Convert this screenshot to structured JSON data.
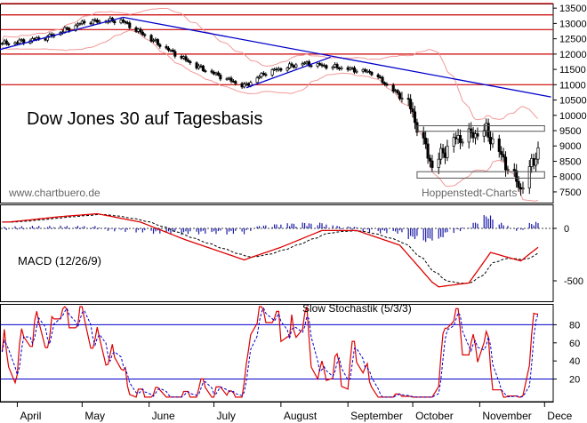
{
  "chart_data": [
    {
      "type": "candlestick",
      "title": "Dow Jones 30 auf Tagesbasis",
      "watermark_left": "www.chartbuero.de",
      "watermark_right": "Hoppenstedt-Charts",
      "y_ticks": [
        7500,
        8000,
        8500,
        9000,
        9500,
        10000,
        10500,
        11000,
        11500,
        12000,
        12500,
        13000,
        13500
      ],
      "ylim": [
        7150,
        13650
      ],
      "ohlc_anchors": [
        {
          "date": "2008-03-28",
          "value": 12350
        },
        {
          "date": "2008-04-15",
          "value": 12550
        },
        {
          "date": "2008-05-02",
          "value": 13050
        },
        {
          "date": "2008-05-19",
          "value": 13100
        },
        {
          "date": "2008-06-06",
          "value": 12300
        },
        {
          "date": "2008-06-23",
          "value": 11600
        },
        {
          "date": "2008-07-15",
          "value": 10950
        },
        {
          "date": "2008-07-25",
          "value": 11400
        },
        {
          "date": "2008-08-11",
          "value": 11700
        },
        {
          "date": "2008-08-29",
          "value": 11550
        },
        {
          "date": "2008-09-12",
          "value": 11400
        },
        {
          "date": "2008-09-29",
          "value": 10400
        },
        {
          "date": "2008-10-10",
          "value": 8350
        },
        {
          "date": "2008-10-20",
          "value": 9200
        },
        {
          "date": "2008-11-04",
          "value": 9500
        },
        {
          "date": "2008-11-20",
          "value": 7600
        },
        {
          "date": "2008-11-28",
          "value": 8850
        }
      ],
      "horizontal_lines": [
        13650,
        13280,
        12800,
        12000,
        11000
      ],
      "trendlines": [
        {
          "from": {
            "date": "2008-03-24",
            "value": 12150
          },
          "to": {
            "date": "2008-05-20",
            "value": 13200
          }
        },
        {
          "from": {
            "date": "2008-05-20",
            "value": 13200
          },
          "to": {
            "date": "2008-12-04",
            "value": 10600
          }
        },
        {
          "from": {
            "date": "2008-07-16",
            "value": 10900
          },
          "to": {
            "date": "2008-08-24",
            "value": 11900
          }
        }
      ],
      "boxes": [
        {
          "date_from": "2008-10-03",
          "date_to": "2008-12-01",
          "value_from": 9480,
          "value_to": 9660
        },
        {
          "date_from": "2008-10-03",
          "date_to": "2008-12-01",
          "value_from": 7950,
          "value_to": 8160
        }
      ]
    },
    {
      "type": "line",
      "label": "MACD (12/26/9)",
      "y_ticks": [
        0,
        -500
      ],
      "series": [
        "macd",
        "signal",
        "histogram"
      ],
      "anchors": [
        {
          "date": "2008-03-28",
          "value": 60
        },
        {
          "date": "2008-04-20",
          "value": 110
        },
        {
          "date": "2008-05-08",
          "value": 140
        },
        {
          "date": "2008-05-28",
          "value": 60
        },
        {
          "date": "2008-06-18",
          "value": -110
        },
        {
          "date": "2008-07-15",
          "value": -300
        },
        {
          "date": "2008-08-01",
          "value": -180
        },
        {
          "date": "2008-08-20",
          "value": -20
        },
        {
          "date": "2008-09-05",
          "value": -20
        },
        {
          "date": "2008-09-25",
          "value": -160
        },
        {
          "date": "2008-10-12",
          "value": -560
        },
        {
          "date": "2008-10-27",
          "value": -520
        },
        {
          "date": "2008-11-06",
          "value": -230
        },
        {
          "date": "2008-11-20",
          "value": -310
        },
        {
          "date": "2008-11-28",
          "value": -180
        }
      ]
    },
    {
      "type": "line",
      "label": "Slow Stochastik (5/3/3)",
      "y_ticks": [
        20,
        40,
        60,
        80
      ],
      "reference_lines": [
        20,
        80
      ],
      "ylim": [
        -5,
        103
      ]
    }
  ],
  "x_axis": {
    "months": [
      "April",
      "May",
      "June",
      "July",
      "August",
      "September",
      "October",
      "November",
      "Dece"
    ]
  },
  "colors": {
    "price": "#000000",
    "horizontal_line": "#cc0000",
    "trendline": "#0000cc",
    "bollinger": "#f29999",
    "macd_line": "#dd0000",
    "macd_signal": "#000000",
    "macd_histogram": "#1a1aa6",
    "stoch_k": "#dd0000",
    "stoch_d": "#0000cc",
    "reference_line": "#0000cc"
  }
}
